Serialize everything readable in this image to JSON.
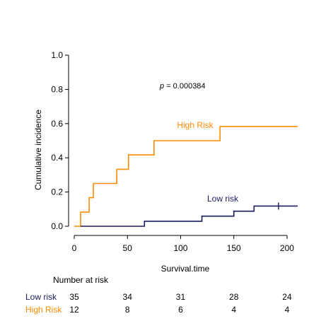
{
  "chart_data": {
    "type": "line",
    "chart_kind": "kaplan-meier-cumulative-incidence",
    "title": "",
    "xlabel": "Survival.time",
    "ylabel": "Cumulative incidence",
    "xlim": [
      0,
      210
    ],
    "ylim": [
      0,
      1.0
    ],
    "x_ticks": [
      0,
      50,
      100,
      150,
      200
    ],
    "y_ticks": [
      0.0,
      0.2,
      0.4,
      0.6,
      0.8,
      1.0
    ],
    "x_tick_labels": [
      "0",
      "50",
      "100",
      "150",
      "200"
    ],
    "y_tick_labels": [
      "0.0",
      "0.2",
      "0.4",
      "0.6",
      "0.8",
      "1.0"
    ],
    "grid": false,
    "annotation": {
      "p_label": "p",
      "p_value": " = 0.000384"
    },
    "series": [
      {
        "name": "High Risk",
        "color": "#FF8C00",
        "x": [
          0,
          6,
          14,
          18,
          20,
          40,
          51,
          75,
          137,
          210
        ],
        "y": [
          0.0,
          0.083,
          0.167,
          0.25,
          0.25,
          0.333,
          0.417,
          0.5,
          0.583,
          0.583
        ],
        "censor_x": []
      },
      {
        "name": "Low risk",
        "color": "#1A1A5E",
        "x": [
          6,
          66,
          120,
          150,
          169,
          210
        ],
        "y": [
          0.0,
          0.029,
          0.059,
          0.088,
          0.118,
          0.118
        ],
        "censor_x": [
          192
        ]
      }
    ],
    "risk_table": {
      "title": "Number at risk",
      "times": [
        0,
        50,
        100,
        150,
        200
      ],
      "rows": [
        {
          "label": "Low risk",
          "color": "#1A1A5E",
          "values": [
            "35",
            "34",
            "31",
            "28",
            "24"
          ]
        },
        {
          "label": "High Risk",
          "color": "#FF8C00",
          "values": [
            "12",
            "8",
            "6",
            "4",
            "4"
          ]
        }
      ]
    }
  }
}
